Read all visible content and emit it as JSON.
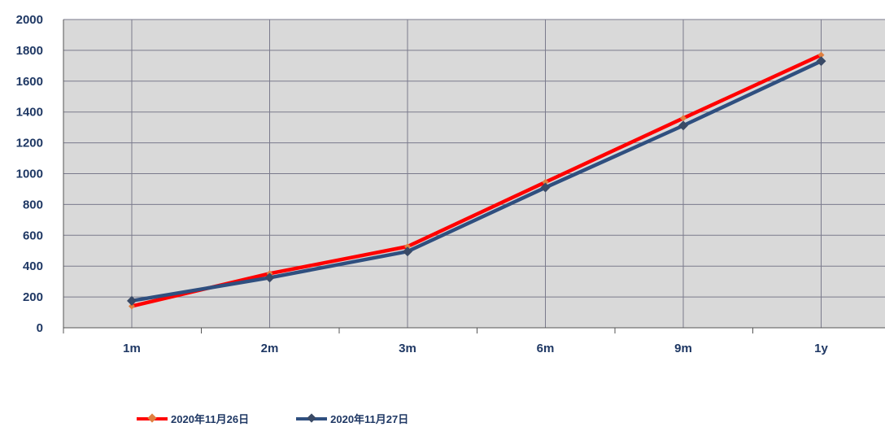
{
  "chart_data": {
    "type": "line",
    "categories": [
      "1m",
      "2m",
      "3m",
      "6m",
      "9m",
      "1y"
    ],
    "series": [
      {
        "name": "2020年11月26日",
        "values": [
          140,
          352,
          527,
          945,
          1360,
          1770
        ],
        "color": "#ff0000",
        "marker_color": "#e08040"
      },
      {
        "name": "2020年11月27日",
        "values": [
          175,
          325,
          495,
          910,
          1312,
          1730
        ],
        "color": "#2f4f7f",
        "marker_color": "#3a4a66"
      }
    ],
    "yticks": [
      "0",
      "200",
      "400",
      "600",
      "800",
      "1000",
      "1200",
      "1400",
      "1600",
      "1800",
      "2000"
    ],
    "ylim": [
      0,
      2000
    ],
    "title": "",
    "xlabel": "",
    "ylabel": "",
    "grid": true,
    "legend_position": "bottom",
    "plot_background": "#d9d9d9",
    "grid_color": "#7a7a8c",
    "axis_label_color": "#1f3864"
  }
}
